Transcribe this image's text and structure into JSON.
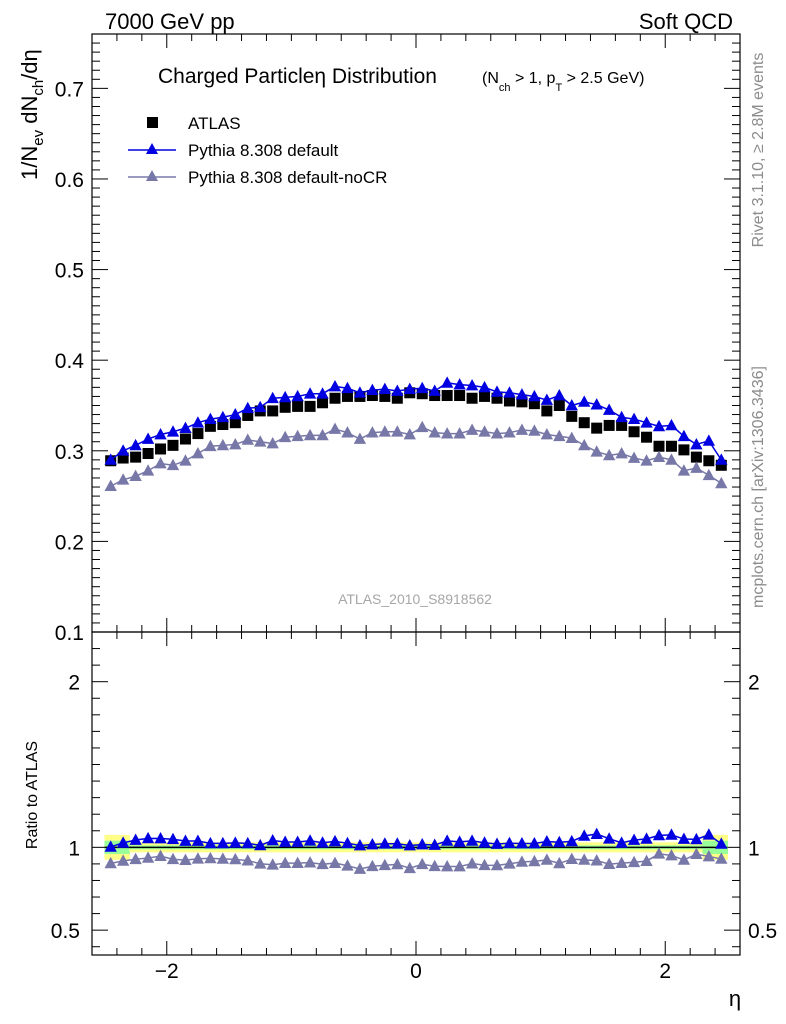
{
  "header": {
    "left": "7000 GeV pp",
    "right": "Soft QCD"
  },
  "side": {
    "top": "Rivet 3.1.10, ≥ 2.8M events",
    "bottom": "mcplots.cern.ch [arXiv:1306.3436]"
  },
  "chart_data": [
    {
      "type": "scatter",
      "title": "Charged Particleη Distribution",
      "subtitle": "(N_ch > 1, p_T > 2.5 GeV)",
      "xlabel": "η",
      "ylabel": "1/N_ev dN_ch/dη",
      "xlim": [
        -2.6,
        2.6
      ],
      "ylim": [
        0.1,
        0.76
      ],
      "x_ticks": [
        "−2",
        "0",
        "2"
      ],
      "y_ticks": [
        "0.1",
        "0.2",
        "0.3",
        "0.4",
        "0.5",
        "0.6",
        "0.7"
      ],
      "watermark": "ATLAS_2010_S8918562",
      "legend_position": "top-left",
      "x": [
        -2.45,
        -2.35,
        -2.25,
        -2.15,
        -2.05,
        -1.95,
        -1.85,
        -1.75,
        -1.65,
        -1.55,
        -1.45,
        -1.35,
        -1.25,
        -1.15,
        -1.05,
        -0.95,
        -0.85,
        -0.75,
        -0.65,
        -0.55,
        -0.45,
        -0.35,
        -0.25,
        -0.15,
        -0.05,
        0.05,
        0.15,
        0.25,
        0.35,
        0.45,
        0.55,
        0.65,
        0.75,
        0.85,
        0.95,
        1.05,
        1.15,
        1.25,
        1.35,
        1.45,
        1.55,
        1.65,
        1.75,
        1.85,
        1.95,
        2.05,
        2.15,
        2.25,
        2.35,
        2.45
      ],
      "series": [
        {
          "name": "ATLAS",
          "marker": "square",
          "color": "#000000",
          "values": [
            0.289,
            0.292,
            0.293,
            0.297,
            0.302,
            0.306,
            0.313,
            0.319,
            0.327,
            0.329,
            0.331,
            0.339,
            0.344,
            0.344,
            0.348,
            0.349,
            0.349,
            0.353,
            0.358,
            0.36,
            0.36,
            0.361,
            0.36,
            0.358,
            0.364,
            0.363,
            0.361,
            0.361,
            0.361,
            0.358,
            0.36,
            0.358,
            0.355,
            0.354,
            0.352,
            0.344,
            0.35,
            0.338,
            0.331,
            0.325,
            0.328,
            0.328,
            0.321,
            0.315,
            0.305,
            0.305,
            0.301,
            0.293,
            0.289,
            0.284
          ]
        },
        {
          "name": "Pythia 8.308 default",
          "marker": "triangle",
          "color": "#0000e0",
          "values": [
            0.29,
            0.3,
            0.306,
            0.313,
            0.318,
            0.321,
            0.325,
            0.331,
            0.335,
            0.337,
            0.34,
            0.347,
            0.348,
            0.358,
            0.359,
            0.36,
            0.363,
            0.363,
            0.371,
            0.369,
            0.364,
            0.367,
            0.368,
            0.366,
            0.368,
            0.369,
            0.366,
            0.375,
            0.373,
            0.372,
            0.37,
            0.365,
            0.364,
            0.362,
            0.36,
            0.356,
            0.361,
            0.35,
            0.354,
            0.351,
            0.345,
            0.337,
            0.335,
            0.331,
            0.327,
            0.328,
            0.316,
            0.307,
            0.311,
            0.29
          ]
        },
        {
          "name": "Pythia 8.308 default-noCR",
          "marker": "triangle",
          "color": "#7878a8",
          "values": [
            0.261,
            0.268,
            0.272,
            0.278,
            0.286,
            0.284,
            0.289,
            0.297,
            0.305,
            0.306,
            0.307,
            0.312,
            0.31,
            0.308,
            0.315,
            0.316,
            0.317,
            0.317,
            0.324,
            0.32,
            0.313,
            0.32,
            0.321,
            0.321,
            0.318,
            0.326,
            0.32,
            0.319,
            0.319,
            0.323,
            0.321,
            0.319,
            0.32,
            0.323,
            0.322,
            0.318,
            0.316,
            0.314,
            0.306,
            0.299,
            0.295,
            0.297,
            0.292,
            0.289,
            0.293,
            0.29,
            0.278,
            0.281,
            0.273,
            0.264
          ]
        }
      ]
    },
    {
      "type": "scatter",
      "ylabel": "Ratio to ATLAS",
      "xlabel": "η",
      "xlim": [
        -2.6,
        2.6
      ],
      "ylim": [
        0.35,
        2.3
      ],
      "y_ticks": [
        "0.5",
        "1",
        "2"
      ],
      "band_colors": {
        "inner": "#99ff99",
        "outer": "#ffff88"
      },
      "series": [
        {
          "name": "Pythia 8.308 default",
          "color": "#0000e0",
          "values": [
            1.003,
            1.027,
            1.044,
            1.054,
            1.053,
            1.049,
            1.038,
            1.038,
            1.024,
            1.024,
            1.027,
            1.024,
            1.012,
            1.041,
            1.032,
            1.032,
            1.04,
            1.028,
            1.036,
            1.025,
            1.011,
            1.017,
            1.022,
            1.022,
            1.011,
            1.017,
            1.014,
            1.039,
            1.033,
            1.039,
            1.028,
            1.02,
            1.025,
            1.023,
            1.023,
            1.035,
            1.031,
            1.036,
            1.069,
            1.08,
            1.052,
            1.027,
            1.044,
            1.051,
            1.072,
            1.075,
            1.05,
            1.048,
            1.076,
            1.021
          ]
        },
        {
          "name": "Pythia 8.308 default-noCR",
          "color": "#7878a8",
          "values": [
            0.903,
            0.918,
            0.928,
            0.936,
            0.947,
            0.928,
            0.923,
            0.931,
            0.933,
            0.93,
            0.927,
            0.92,
            0.901,
            0.895,
            0.905,
            0.905,
            0.908,
            0.898,
            0.905,
            0.889,
            0.869,
            0.886,
            0.892,
            0.897,
            0.874,
            0.898,
            0.886,
            0.884,
            0.884,
            0.902,
            0.892,
            0.891,
            0.901,
            0.912,
            0.915,
            0.924,
            0.903,
            0.929,
            0.924,
            0.92,
            0.899,
            0.905,
            0.91,
            0.917,
            0.961,
            0.951,
            0.924,
            0.959,
            0.945,
            0.93
          ]
        }
      ]
    }
  ]
}
